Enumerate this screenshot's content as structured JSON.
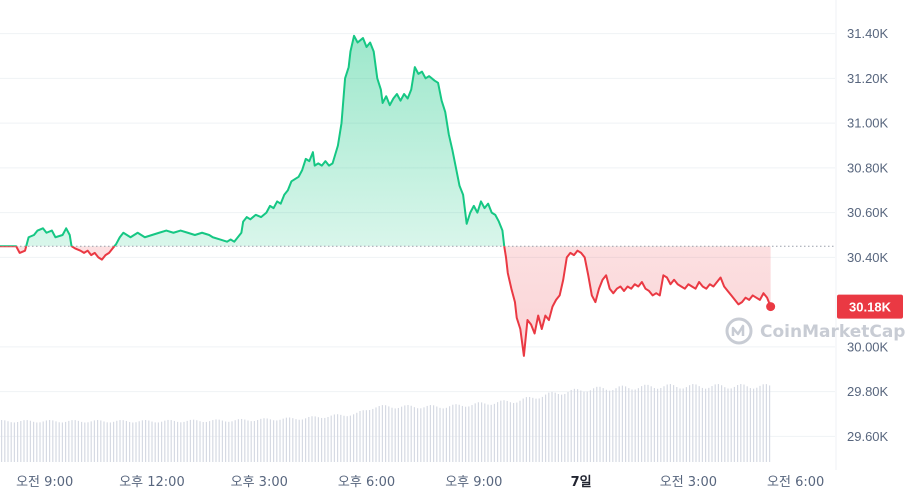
{
  "chart_data": {
    "type": "line",
    "baseline": 30450,
    "current_price": 30180,
    "current_label": "30.18K",
    "ylim": [
      29450,
      31550
    ],
    "y_ticks": [
      {
        "value": 31400,
        "label": "31.40K"
      },
      {
        "value": 31200,
        "label": "31.20K"
      },
      {
        "value": 31000,
        "label": "31.00K"
      },
      {
        "value": 30800,
        "label": "30.80K"
      },
      {
        "value": 30600,
        "label": "30.60K"
      },
      {
        "value": 30400,
        "label": "30.40K"
      },
      {
        "value": 30000,
        "label": "30.00K"
      },
      {
        "value": 29800,
        "label": "29.80K"
      },
      {
        "value": 29600,
        "label": "29.60K"
      }
    ],
    "x_ticks": [
      {
        "t": 0.8,
        "label": "오전 9:00",
        "bold": false
      },
      {
        "t": 3.8,
        "label": "오후 12:00",
        "bold": false
      },
      {
        "t": 6.8,
        "label": "오후 3:00",
        "bold": false
      },
      {
        "t": 9.8,
        "label": "오후 6:00",
        "bold": false
      },
      {
        "t": 12.8,
        "label": "오후 9:00",
        "bold": false
      },
      {
        "t": 15.8,
        "label": "7일",
        "bold": true
      },
      {
        "t": 18.8,
        "label": "오전 3:00",
        "bold": false
      },
      {
        "t": 21.8,
        "label": "오전 6:00",
        "bold": false
      }
    ],
    "t_range": [
      -0.45,
      22.9
    ],
    "series": [
      {
        "points": [
          [
            0,
            30450
          ],
          [
            0.1,
            30420
          ],
          [
            0.25,
            30430
          ],
          [
            0.35,
            30490
          ],
          [
            0.5,
            30500
          ],
          [
            0.6,
            30520
          ],
          [
            0.75,
            30530
          ],
          [
            0.85,
            30510
          ],
          [
            1.0,
            30520
          ],
          [
            1.1,
            30490
          ],
          [
            1.3,
            30500
          ],
          [
            1.4,
            30530
          ],
          [
            1.5,
            30500
          ],
          [
            1.55,
            30450
          ],
          [
            1.65,
            30440
          ],
          [
            1.8,
            30430
          ],
          [
            1.9,
            30420
          ],
          [
            2.0,
            30430
          ],
          [
            2.1,
            30410
          ],
          [
            2.2,
            30420
          ],
          [
            2.3,
            30400
          ],
          [
            2.4,
            30390
          ],
          [
            2.5,
            30410
          ],
          [
            2.6,
            30420
          ],
          [
            2.7,
            30440
          ],
          [
            2.8,
            30460
          ],
          [
            2.9,
            30490
          ],
          [
            3.0,
            30510
          ],
          [
            3.1,
            30500
          ],
          [
            3.2,
            30490
          ],
          [
            3.3,
            30500
          ],
          [
            3.4,
            30510
          ],
          [
            3.5,
            30500
          ],
          [
            3.6,
            30490
          ],
          [
            3.8,
            30500
          ],
          [
            4.0,
            30510
          ],
          [
            4.2,
            30520
          ],
          [
            4.4,
            30510
          ],
          [
            4.6,
            30520
          ],
          [
            4.8,
            30510
          ],
          [
            5.0,
            30500
          ],
          [
            5.2,
            30510
          ],
          [
            5.4,
            30500
          ],
          [
            5.5,
            30490
          ],
          [
            5.7,
            30480
          ],
          [
            5.9,
            30470
          ],
          [
            6.0,
            30480
          ],
          [
            6.1,
            30470
          ],
          [
            6.2,
            30490
          ],
          [
            6.3,
            30510
          ],
          [
            6.35,
            30560
          ],
          [
            6.45,
            30580
          ],
          [
            6.55,
            30570
          ],
          [
            6.7,
            30590
          ],
          [
            6.85,
            30580
          ],
          [
            7.0,
            30600
          ],
          [
            7.1,
            30630
          ],
          [
            7.2,
            30620
          ],
          [
            7.3,
            30650
          ],
          [
            7.4,
            30640
          ],
          [
            7.5,
            30680
          ],
          [
            7.6,
            30700
          ],
          [
            7.7,
            30740
          ],
          [
            7.8,
            30750
          ],
          [
            7.9,
            30760
          ],
          [
            8.0,
            30790
          ],
          [
            8.1,
            30840
          ],
          [
            8.2,
            30830
          ],
          [
            8.3,
            30870
          ],
          [
            8.35,
            30810
          ],
          [
            8.45,
            30820
          ],
          [
            8.55,
            30810
          ],
          [
            8.65,
            30830
          ],
          [
            8.75,
            30810
          ],
          [
            8.85,
            30820
          ],
          [
            9.0,
            30900
          ],
          [
            9.1,
            31000
          ],
          [
            9.2,
            31200
          ],
          [
            9.3,
            31250
          ],
          [
            9.35,
            31320
          ],
          [
            9.45,
            31390
          ],
          [
            9.55,
            31360
          ],
          [
            9.7,
            31380
          ],
          [
            9.8,
            31340
          ],
          [
            9.9,
            31360
          ],
          [
            10.0,
            31320
          ],
          [
            10.1,
            31200
          ],
          [
            10.2,
            31150
          ],
          [
            10.25,
            31090
          ],
          [
            10.35,
            31120
          ],
          [
            10.45,
            31080
          ],
          [
            10.55,
            31110
          ],
          [
            10.65,
            31130
          ],
          [
            10.75,
            31100
          ],
          [
            10.85,
            31130
          ],
          [
            10.95,
            31110
          ],
          [
            11.05,
            31150
          ],
          [
            11.15,
            31250
          ],
          [
            11.25,
            31220
          ],
          [
            11.35,
            31230
          ],
          [
            11.45,
            31200
          ],
          [
            11.55,
            31210
          ],
          [
            11.7,
            31190
          ],
          [
            11.8,
            31180
          ],
          [
            11.9,
            31100
          ],
          [
            12.0,
            31050
          ],
          [
            12.1,
            30950
          ],
          [
            12.2,
            30880
          ],
          [
            12.3,
            30800
          ],
          [
            12.4,
            30720
          ],
          [
            12.5,
            30680
          ],
          [
            12.6,
            30550
          ],
          [
            12.7,
            30600
          ],
          [
            12.8,
            30630
          ],
          [
            12.9,
            30600
          ],
          [
            13.0,
            30650
          ],
          [
            13.1,
            30620
          ],
          [
            13.2,
            30640
          ],
          [
            13.3,
            30600
          ],
          [
            13.4,
            30590
          ],
          [
            13.5,
            30560
          ],
          [
            13.6,
            30520
          ],
          [
            13.65,
            30450
          ],
          [
            13.7,
            30400
          ],
          [
            13.75,
            30330
          ],
          [
            13.85,
            30260
          ],
          [
            13.95,
            30200
          ],
          [
            14.0,
            30130
          ],
          [
            14.1,
            30080
          ],
          [
            14.2,
            29960
          ],
          [
            14.3,
            30120
          ],
          [
            14.4,
            30100
          ],
          [
            14.5,
            30060
          ],
          [
            14.6,
            30140
          ],
          [
            14.7,
            30080
          ],
          [
            14.8,
            30140
          ],
          [
            14.9,
            30120
          ],
          [
            15.0,
            30180
          ],
          [
            15.1,
            30210
          ],
          [
            15.2,
            30230
          ],
          [
            15.3,
            30300
          ],
          [
            15.4,
            30400
          ],
          [
            15.5,
            30420
          ],
          [
            15.6,
            30410
          ],
          [
            15.7,
            30430
          ],
          [
            15.8,
            30420
          ],
          [
            15.9,
            30400
          ],
          [
            16.0,
            30320
          ],
          [
            16.1,
            30230
          ],
          [
            16.2,
            30200
          ],
          [
            16.3,
            30260
          ],
          [
            16.4,
            30300
          ],
          [
            16.5,
            30320
          ],
          [
            16.6,
            30260
          ],
          [
            16.7,
            30240
          ],
          [
            16.8,
            30260
          ],
          [
            16.9,
            30270
          ],
          [
            17.0,
            30250
          ],
          [
            17.1,
            30270
          ],
          [
            17.2,
            30260
          ],
          [
            17.3,
            30280
          ],
          [
            17.4,
            30270
          ],
          [
            17.5,
            30290
          ],
          [
            17.6,
            30260
          ],
          [
            17.7,
            30250
          ],
          [
            17.8,
            30230
          ],
          [
            17.9,
            30240
          ],
          [
            18.0,
            30230
          ],
          [
            18.1,
            30320
          ],
          [
            18.2,
            30310
          ],
          [
            18.3,
            30280
          ],
          [
            18.4,
            30300
          ],
          [
            18.5,
            30280
          ],
          [
            18.6,
            30270
          ],
          [
            18.7,
            30260
          ],
          [
            18.8,
            30280
          ],
          [
            18.9,
            30270
          ],
          [
            19.0,
            30260
          ],
          [
            19.1,
            30290
          ],
          [
            19.2,
            30270
          ],
          [
            19.3,
            30260
          ],
          [
            19.4,
            30280
          ],
          [
            19.5,
            30270
          ],
          [
            19.6,
            30290
          ],
          [
            19.7,
            30310
          ],
          [
            19.8,
            30270
          ],
          [
            19.9,
            30250
          ],
          [
            20.0,
            30230
          ],
          [
            20.1,
            30210
          ],
          [
            20.2,
            30190
          ],
          [
            20.3,
            30200
          ],
          [
            20.4,
            30220
          ],
          [
            20.5,
            30210
          ],
          [
            20.6,
            30230
          ],
          [
            20.7,
            30220
          ],
          [
            20.8,
            30210
          ],
          [
            20.9,
            30240
          ],
          [
            21.0,
            30220
          ],
          [
            21.1,
            30180
          ]
        ]
      }
    ],
    "volume_profile": [
      [
        0,
        0.28
      ],
      [
        2,
        0.28
      ],
      [
        4,
        0.28
      ],
      [
        6,
        0.285
      ],
      [
        8,
        0.3
      ],
      [
        9.5,
        0.33
      ],
      [
        10,
        0.38
      ],
      [
        12,
        0.38
      ],
      [
        13,
        0.4
      ],
      [
        14,
        0.42
      ],
      [
        15,
        0.47
      ],
      [
        16,
        0.5
      ],
      [
        18,
        0.52
      ],
      [
        21.1,
        0.52
      ]
    ],
    "colors": {
      "up_line": "#16c784",
      "down_line": "#ea3943",
      "baseline": "#9aa0ab",
      "grid": "#eff2f5",
      "volume_bar": "#d6dae3",
      "label_bg": "#ea3943",
      "label_text": "#ffffff"
    },
    "watermark": "CoinMarketCap",
    "grid": true
  }
}
